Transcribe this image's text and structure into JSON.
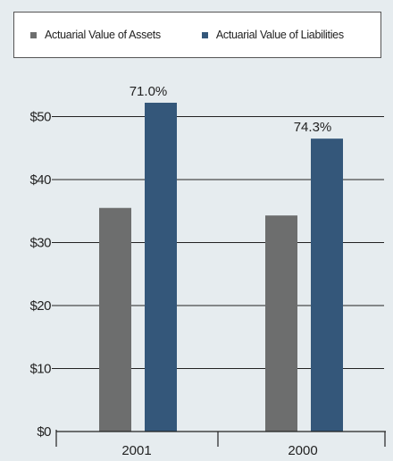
{
  "chart_data": {
    "type": "bar",
    "categories": [
      "2001",
      "2000"
    ],
    "series": [
      {
        "name": "Actuarial Value of Assets",
        "values": [
          35.5,
          34.3
        ],
        "color": "#6d6e6e"
      },
      {
        "name": "Actuarial Value of Liabilities",
        "values": [
          52.2,
          46.5
        ],
        "color": "#34577a"
      }
    ],
    "data_labels": [
      "71.0%",
      "74.3%"
    ],
    "yticks": [
      0,
      10,
      20,
      30,
      40,
      50
    ],
    "ytick_labels": [
      "$0",
      "$10",
      "$20",
      "$30",
      "$40",
      "$50"
    ],
    "ylim": [
      0,
      55
    ],
    "grid": true,
    "legend_position": "top"
  }
}
